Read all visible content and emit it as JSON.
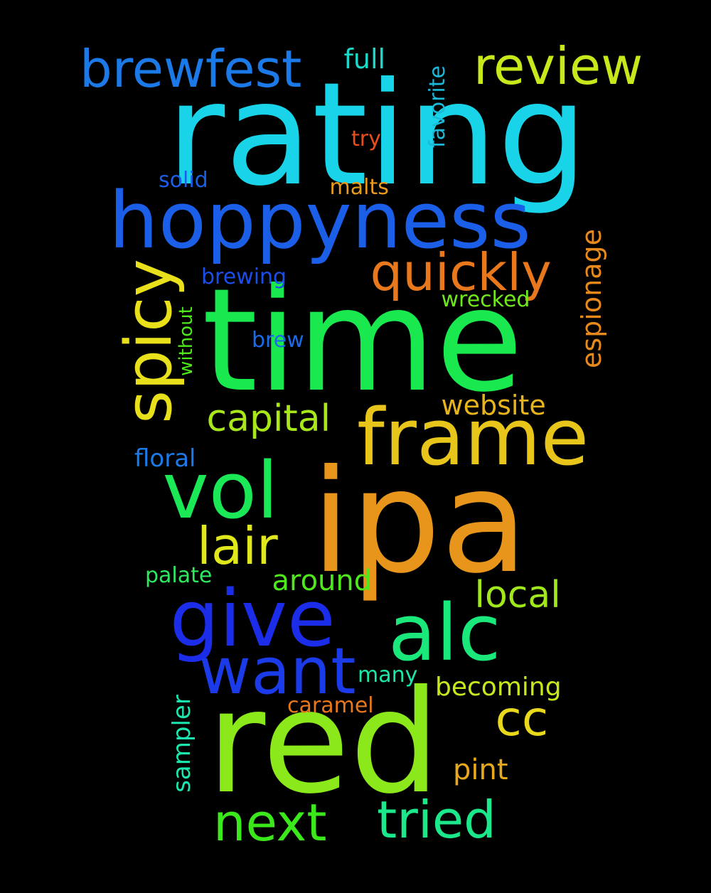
{
  "background": "#000000",
  "words": [
    {
      "id": "rating",
      "text": "rating",
      "color": "#19d4e8"
    },
    {
      "id": "time",
      "text": "time",
      "color": "#19e84e"
    },
    {
      "id": "ipa",
      "text": "ipa",
      "color": "#e8961b"
    },
    {
      "id": "red",
      "text": "red",
      "color": "#8be81b"
    },
    {
      "id": "hoppyness",
      "text": "hoppyness",
      "color": "#1b5ee8"
    },
    {
      "id": "frame",
      "text": "frame",
      "color": "#e8c51b"
    },
    {
      "id": "give",
      "text": "give",
      "color": "#1b2de8"
    },
    {
      "id": "alc",
      "text": "alc",
      "color": "#1be87a"
    },
    {
      "id": "vol",
      "text": "vol",
      "color": "#1be856"
    },
    {
      "id": "want",
      "text": "want",
      "color": "#1b3ae8"
    },
    {
      "id": "spicy",
      "text": "spicy",
      "color": "#e8e01b"
    },
    {
      "id": "brewfest",
      "text": "brewfest",
      "color": "#1b7ae8"
    },
    {
      "id": "review",
      "text": "review",
      "color": "#c8e81b"
    },
    {
      "id": "quickly",
      "text": "quickly",
      "color": "#e8781b"
    },
    {
      "id": "next",
      "text": "next",
      "color": "#3be81b"
    },
    {
      "id": "tried",
      "text": "tried",
      "color": "#1be88a"
    },
    {
      "id": "lair",
      "text": "lair",
      "color": "#e0e81b"
    },
    {
      "id": "cc",
      "text": "cc",
      "color": "#e8d81b"
    },
    {
      "id": "capital",
      "text": "capital",
      "color": "#a8e81b"
    },
    {
      "id": "local",
      "text": "local",
      "color": "#a0e81b"
    },
    {
      "id": "around",
      "text": "around",
      "color": "#4ee81b"
    },
    {
      "id": "website",
      "text": "website",
      "color": "#e8b41b"
    },
    {
      "id": "espionage",
      "text": "espionage",
      "color": "#e88a1b"
    },
    {
      "id": "full",
      "text": "full",
      "color": "#1bd8c8"
    },
    {
      "id": "favorite",
      "text": "favorite",
      "color": "#1bb8d8"
    },
    {
      "id": "try",
      "text": "try",
      "color": "#e84e1b"
    },
    {
      "id": "solid",
      "text": "solid",
      "color": "#1b5ee8"
    },
    {
      "id": "malts",
      "text": "malts",
      "color": "#e89a1b"
    },
    {
      "id": "brewing",
      "text": "brewing",
      "color": "#1b4ee8"
    },
    {
      "id": "wrecked",
      "text": "wrecked",
      "color": "#6ee81b"
    },
    {
      "id": "without",
      "text": "without",
      "color": "#4ee81b"
    },
    {
      "id": "brew",
      "text": "brew",
      "color": "#1b6ae8"
    },
    {
      "id": "floral",
      "text": "floral",
      "color": "#1b7ae8"
    },
    {
      "id": "palate",
      "text": "palate",
      "color": "#2ee85e"
    },
    {
      "id": "many",
      "text": "many",
      "color": "#1be8a8"
    },
    {
      "id": "becoming",
      "text": "becoming",
      "color": "#c8e81b"
    },
    {
      "id": "caramel",
      "text": "caramel",
      "color": "#e8781b"
    },
    {
      "id": "sampler",
      "text": "sampler",
      "color": "#1be8b0"
    },
    {
      "id": "pint",
      "text": "pint",
      "color": "#e8a81b"
    }
  ]
}
